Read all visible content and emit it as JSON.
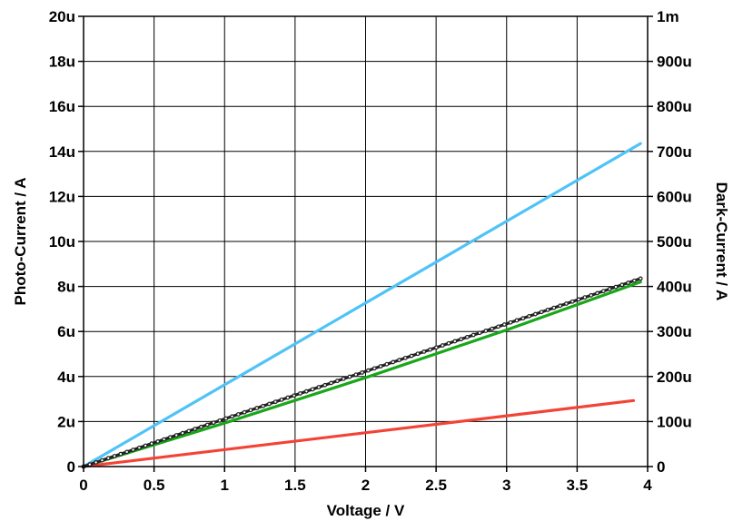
{
  "chart_data": {
    "type": "line",
    "xlabel": "Voltage / V",
    "ylabel_left": "Photo-Current / A",
    "ylabel_right": "Dark-Current / A",
    "xlim": [
      0,
      4
    ],
    "ylim_left": [
      0,
      2e-05
    ],
    "ylim_right": [
      0,
      0.001
    ],
    "grid": true,
    "x_ticks": [
      0,
      0.5,
      1,
      1.5,
      2,
      2.5,
      3,
      3.5,
      4
    ],
    "x_tick_labels": [
      "0",
      "0.5",
      "1",
      "1.5",
      "2",
      "2.5",
      "3",
      "3.5",
      "4"
    ],
    "y_left_ticks": [
      0,
      2e-06,
      4e-06,
      6e-06,
      8e-06,
      1e-05,
      1.2e-05,
      1.4e-05,
      1.6e-05,
      1.8e-05,
      2e-05
    ],
    "y_left_tick_labels": [
      "0",
      "2u",
      "4u",
      "6u",
      "8u",
      "10u",
      "12u",
      "14u",
      "16u",
      "18u",
      "20u"
    ],
    "y_right_ticks": [
      0,
      0.0001,
      0.0002,
      0.0003,
      0.0004,
      0.0005,
      0.0006,
      0.0007,
      0.0008,
      0.0009,
      0.001
    ],
    "y_right_tick_labels": [
      "0",
      "100u",
      "200u",
      "300u",
      "400u",
      "500u",
      "600u",
      "700u",
      "800u",
      "900u",
      "1m"
    ],
    "series": [
      {
        "color": "#4fc3f7",
        "axis": "left",
        "marker": false,
        "x": [
          0,
          3.95
        ],
        "y": [
          0,
          1.435e-05
        ]
      },
      {
        "color": "#19a619",
        "axis": "left",
        "marker": false,
        "x": [
          0,
          1,
          2,
          3,
          3.95
        ],
        "y": [
          0,
          1.93e-06,
          3.95e-06,
          6.07e-06,
          8.2e-06
        ]
      },
      {
        "color": "#f44336",
        "axis": "left",
        "marker": false,
        "x": [
          0,
          3.9
        ],
        "y": [
          0,
          2.93e-06
        ]
      },
      {
        "color": "#222222",
        "axis": "left",
        "marker": true,
        "x": [
          0,
          3.95
        ],
        "y": [
          0,
          8.35e-06
        ]
      }
    ]
  }
}
